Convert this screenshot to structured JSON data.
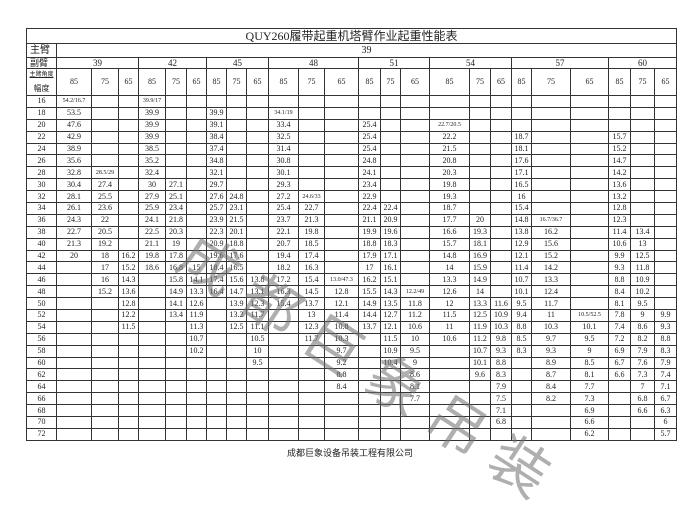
{
  "title": "QUY260履带起重机塔臂作业起重性能表",
  "main_boom": {
    "label": "主臂",
    "value": "39"
  },
  "jib": {
    "label": "副臂"
  },
  "corner": {
    "top": "主臂角度",
    "bottom": "幅度"
  },
  "groups": [
    {
      "jib": "39",
      "angles": [
        "85",
        "75",
        "65"
      ]
    },
    {
      "jib": "42",
      "angles": [
        "85",
        "75",
        "65"
      ]
    },
    {
      "jib": "45",
      "angles": [
        "85",
        "75",
        "65"
      ]
    },
    {
      "jib": "48",
      "angles": [
        "85",
        "75",
        "65"
      ]
    },
    {
      "jib": "51",
      "angles": [
        "85",
        "75",
        "65"
      ]
    },
    {
      "jib": "54",
      "angles": [
        "85",
        "75",
        "65"
      ]
    },
    {
      "jib": "57",
      "angles": [
        "85",
        "75",
        "65"
      ]
    },
    {
      "jib": "60",
      "angles": [
        "85",
        "75",
        "65"
      ]
    }
  ],
  "rows": [
    {
      "radius": "16",
      "values": [
        "54.2/16.7",
        "",
        "",
        "39.9/17",
        "",
        "",
        "",
        "",
        "",
        "",
        "",
        "",
        "",
        "",
        "",
        "",
        "",
        "",
        "",
        "",
        "",
        "",
        "",
        ""
      ]
    },
    {
      "radius": "18",
      "values": [
        "53.5",
        "",
        "",
        "39.9",
        "",
        "",
        "39.9",
        "",
        "",
        "34.1/19",
        "",
        "",
        "",
        "",
        "",
        "",
        "",
        "",
        "",
        "",
        "",
        "",
        "",
        ""
      ]
    },
    {
      "radius": "20",
      "values": [
        "47.6",
        "",
        "",
        "39.9",
        "",
        "",
        "39.1",
        "",
        "",
        "33.4",
        "",
        "",
        "25.4",
        "",
        "",
        "22.7/20.5",
        "",
        "",
        "",
        "",
        "",
        "",
        "",
        ""
      ]
    },
    {
      "radius": "22",
      "values": [
        "42.9",
        "",
        "",
        "39.9",
        "",
        "",
        "38.4",
        "",
        "",
        "32.5",
        "",
        "",
        "25.4",
        "",
        "",
        "22.2",
        "",
        "",
        "18.7",
        "",
        "",
        "15.7",
        "",
        ""
      ]
    },
    {
      "radius": "24",
      "values": [
        "38.9",
        "",
        "",
        "38.5",
        "",
        "",
        "37.4",
        "",
        "",
        "31.4",
        "",
        "",
        "25.4",
        "",
        "",
        "21.5",
        "",
        "",
        "18.1",
        "",
        "",
        "15.2",
        "",
        ""
      ]
    },
    {
      "radius": "26",
      "values": [
        "35.6",
        "",
        "",
        "35.2",
        "",
        "",
        "34.8",
        "",
        "",
        "30.8",
        "",
        "",
        "24.8",
        "",
        "",
        "20.8",
        "",
        "",
        "17.6",
        "",
        "",
        "14.7",
        "",
        ""
      ]
    },
    {
      "radius": "28",
      "values": [
        "32.8",
        "28.5/29",
        "",
        "32.4",
        "",
        "",
        "32.1",
        "",
        "",
        "30.1",
        "",
        "",
        "24.1",
        "",
        "",
        "20.3",
        "",
        "",
        "17.1",
        "",
        "",
        "14.2",
        "",
        ""
      ]
    },
    {
      "radius": "30",
      "values": [
        "30.4",
        "27.4",
        "",
        "30",
        "27.1",
        "",
        "29.7",
        "",
        "",
        "29.3",
        "",
        "",
        "23.4",
        "",
        "",
        "19.8",
        "",
        "",
        "16.5",
        "",
        "",
        "13.6",
        "",
        ""
      ]
    },
    {
      "radius": "32",
      "values": [
        "28.1",
        "25.5",
        "",
        "27.9",
        "25.1",
        "",
        "27.6",
        "24.8",
        "",
        "27.2",
        "24.6/33",
        "",
        "22.9",
        "",
        "",
        "19.3",
        "",
        "",
        "16",
        "",
        "",
        "13.2",
        "",
        ""
      ]
    },
    {
      "radius": "34",
      "values": [
        "26.1",
        "23.6",
        "",
        "25.9",
        "23.4",
        "",
        "25.7",
        "23.1",
        "",
        "25.4",
        "22.7",
        "",
        "22.4",
        "22.4",
        "",
        "18.7",
        "",
        "",
        "15.4",
        "",
        "",
        "12.8",
        "",
        ""
      ]
    },
    {
      "radius": "36",
      "values": [
        "24.3",
        "22",
        "",
        "24.1",
        "21.8",
        "",
        "23.9",
        "21.5",
        "",
        "23.7",
        "21.3",
        "",
        "21.1",
        "20.9",
        "",
        "17.7",
        "20",
        "",
        "14.8",
        "16.7/36.7",
        "",
        "12.3",
        "",
        ""
      ]
    },
    {
      "radius": "38",
      "values": [
        "22.7",
        "20.5",
        "",
        "22.5",
        "20.3",
        "",
        "22.3",
        "20.1",
        "",
        "22.1",
        "19.8",
        "",
        "19.9",
        "19.6",
        "",
        "16.6",
        "19.3",
        "",
        "13.8",
        "16.2",
        "",
        "11.4",
        "13.4",
        ""
      ]
    },
    {
      "radius": "40",
      "values": [
        "21.3",
        "19.2",
        "",
        "21.1",
        "19",
        "",
        "20.9",
        "18.8",
        "",
        "20.7",
        "18.5",
        "",
        "18.8",
        "18.3",
        "",
        "15.7",
        "18.1",
        "",
        "12.9",
        "15.6",
        "",
        "10.6",
        "13",
        ""
      ]
    },
    {
      "radius": "42",
      "values": [
        "20",
        "18",
        "16.2",
        "19.8",
        "17.8",
        "",
        "19.6",
        "17.6",
        "",
        "19.4",
        "17.4",
        "",
        "17.9",
        "17.1",
        "",
        "14.8",
        "16.9",
        "",
        "12.1",
        "15.2",
        "",
        "9.9",
        "12.5",
        ""
      ]
    },
    {
      "radius": "44",
      "values": [
        "",
        "17",
        "15.2",
        "18.6",
        "16.8",
        "15",
        "18.4",
        "16.5",
        "",
        "18.2",
        "16.3",
        "",
        "17",
        "16.1",
        "",
        "14",
        "15.9",
        "",
        "11.4",
        "14.2",
        "",
        "9.3",
        "11.8",
        ""
      ]
    },
    {
      "radius": "46",
      "values": [
        "",
        "16",
        "14.3",
        "",
        "15.8",
        "14.1",
        "17.4",
        "15.6",
        "13.8",
        "17.2",
        "15.4",
        "13.0/47.3",
        "16.2",
        "15.1",
        "",
        "13.3",
        "14.9",
        "",
        "10.7",
        "13.3",
        "",
        "8.8",
        "10.9",
        ""
      ]
    },
    {
      "radius": "48",
      "values": [
        "",
        "15.2",
        "13.6",
        "",
        "14.9",
        "13.3",
        "16.4",
        "14.7",
        "13.1",
        "16.3",
        "14.5",
        "12.8",
        "15.5",
        "14.3",
        "12.2/49",
        "12.6",
        "14",
        "",
        "10.1",
        "12.4",
        "",
        "8.4",
        "10.2",
        ""
      ]
    },
    {
      "radius": "50",
      "values": [
        "",
        "",
        "12.8",
        "",
        "14.1",
        "12.6",
        "",
        "13.9",
        "12.3",
        "15.4",
        "13.7",
        "12.1",
        "14.9",
        "13.5",
        "11.8",
        "12",
        "13.3",
        "11.6",
        "9.5",
        "11.7",
        "",
        "8.1",
        "9.5",
        ""
      ]
    },
    {
      "radius": "52",
      "values": [
        "",
        "",
        "12.2",
        "",
        "13.4",
        "11.9",
        "",
        "13.2",
        "11.7",
        "",
        "13",
        "11.4",
        "14.4",
        "12.7",
        "11.2",
        "11.5",
        "12.5",
        "10.9",
        "9.4",
        "11",
        "10.5/52.5",
        "7.8",
        "9",
        "9.9"
      ]
    },
    {
      "radius": "54",
      "values": [
        "",
        "",
        "11.5",
        "",
        "",
        "11.3",
        "",
        "12.5",
        "11.1",
        "",
        "12.3",
        "10.8",
        "13.7",
        "12.1",
        "10.6",
        "11",
        "11.9",
        "10.3",
        "8.8",
        "10.3",
        "10.1",
        "7.4",
        "8.6",
        "9.3"
      ]
    },
    {
      "radius": "56",
      "values": [
        "",
        "",
        "",
        "",
        "",
        "10.7",
        "",
        "",
        "10.5",
        "",
        "11.7",
        "10.3",
        "",
        "11.5",
        "10",
        "10.6",
        "11.2",
        "9.8",
        "8.5",
        "9.7",
        "9.5",
        "7.2",
        "8.2",
        "8.8"
      ]
    },
    {
      "radius": "58",
      "values": [
        "",
        "",
        "",
        "",
        "",
        "10.2",
        "",
        "",
        "10",
        "",
        "",
        "9.7",
        "",
        "10.9",
        "9.5",
        "",
        "10.7",
        "9.3",
        "8.3",
        "9.3",
        "9",
        "6.9",
        "7.9",
        "8.3"
      ]
    },
    {
      "radius": "60",
      "values": [
        "",
        "",
        "",
        "",
        "",
        "",
        "",
        "",
        "9.5",
        "",
        "",
        "9.2",
        "",
        "10.4",
        "9",
        "",
        "10.1",
        "8.8",
        "",
        "8.9",
        "8.5",
        "6.7",
        "7.6",
        "7.9"
      ]
    },
    {
      "radius": "62",
      "values": [
        "",
        "",
        "",
        "",
        "",
        "",
        "",
        "",
        "",
        "",
        "",
        "8.8",
        "",
        "",
        "8.6",
        "",
        "9.6",
        "8.3",
        "",
        "8.7",
        "8.1",
        "6.6",
        "7.3",
        "7.4"
      ]
    },
    {
      "radius": "64",
      "values": [
        "",
        "",
        "",
        "",
        "",
        "",
        "",
        "",
        "",
        "",
        "",
        "8.4",
        "",
        "",
        "8.1",
        "",
        "",
        "7.9",
        "",
        "8.4",
        "7.7",
        "",
        "7",
        "7.1"
      ]
    },
    {
      "radius": "66",
      "values": [
        "",
        "",
        "",
        "",
        "",
        "",
        "",
        "",
        "",
        "",
        "",
        "",
        "",
        "",
        "7.7",
        "",
        "",
        "7.5",
        "",
        "8.2",
        "7.3",
        "",
        "6.8",
        "6.7"
      ]
    },
    {
      "radius": "68",
      "values": [
        "",
        "",
        "",
        "",
        "",
        "",
        "",
        "",
        "",
        "",
        "",
        "",
        "",
        "",
        "",
        "",
        "",
        "7.1",
        "",
        "",
        "6.9",
        "",
        "6.6",
        "6.3"
      ]
    },
    {
      "radius": "70",
      "values": [
        "",
        "",
        "",
        "",
        "",
        "",
        "",
        "",
        "",
        "",
        "",
        "",
        "",
        "",
        "",
        "",
        "",
        "6.8",
        "",
        "",
        "6.6",
        "",
        "",
        "6"
      ]
    },
    {
      "radius": "72",
      "values": [
        "",
        "",
        "",
        "",
        "",
        "",
        "",
        "",
        "",
        "",
        "",
        "",
        "",
        "",
        "",
        "",
        "",
        "",
        "",
        "",
        "6.2",
        "",
        "",
        "5.7"
      ]
    }
  ],
  "footer": "成都巨象设备吊装工程有限公司",
  "watermark": "成都巨象吊装"
}
